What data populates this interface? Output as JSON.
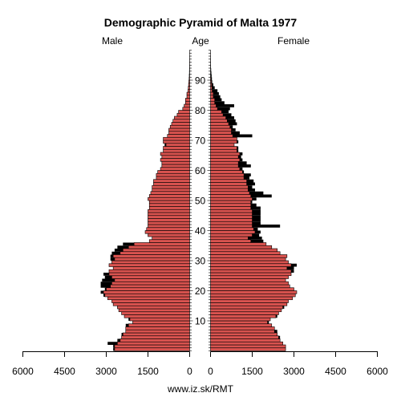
{
  "chart_data": {
    "type": "bar",
    "orientation": "horizontal-pyramid",
    "title": "Demographic Pyramid of Malta 1977",
    "left_label": "Male",
    "center_label": "Age",
    "right_label": "Female",
    "source": "www.iz.sk/RMT",
    "age_ticks": [
      10,
      20,
      30,
      40,
      50,
      60,
      70,
      80,
      90
    ],
    "x_ticks": [
      "6000",
      "4500",
      "3000",
      "1500",
      "0",
      "0",
      "1500",
      "3000",
      "4500",
      "6000"
    ],
    "xlim": [
      0,
      6000
    ],
    "ages": [
      0,
      1,
      2,
      3,
      4,
      5,
      6,
      7,
      8,
      9,
      10,
      11,
      12,
      13,
      14,
      15,
      16,
      17,
      18,
      19,
      20,
      21,
      22,
      23,
      24,
      25,
      26,
      27,
      28,
      29,
      30,
      31,
      32,
      33,
      34,
      35,
      36,
      37,
      38,
      39,
      40,
      41,
      42,
      43,
      44,
      45,
      46,
      47,
      48,
      49,
      50,
      51,
      52,
      53,
      54,
      55,
      56,
      57,
      58,
      59,
      60,
      61,
      62,
      63,
      64,
      65,
      66,
      67,
      68,
      69,
      70,
      71,
      72,
      73,
      74,
      75,
      76,
      77,
      78,
      79,
      80,
      81,
      82,
      83,
      84,
      85,
      86,
      87,
      88,
      89,
      90,
      91,
      92,
      93,
      94,
      95,
      96,
      97,
      98,
      99,
      100
    ],
    "series": [
      {
        "name": "Male",
        "colors": {
          "fill": "#d9534f",
          "excess": "#000000"
        },
        "values": [
          2750,
          2750,
          2950,
          2600,
          2450,
          2450,
          2300,
          2300,
          2300,
          2050,
          2200,
          2350,
          2450,
          2550,
          2600,
          2750,
          2800,
          2950,
          3100,
          3200,
          3050,
          3200,
          3200,
          3150,
          3050,
          3100,
          2900,
          2750,
          2900,
          2800,
          2850,
          2850,
          2800,
          2700,
          2600,
          2400,
          1450,
          1350,
          1500,
          1600,
          1550,
          1500,
          1500,
          1500,
          1500,
          1500,
          1500,
          1450,
          1450,
          1450,
          1500,
          1450,
          1400,
          1350,
          1350,
          1300,
          1300,
          1200,
          1200,
          1150,
          1050,
          1000,
          1000,
          1050,
          1000,
          1050,
          950,
          950,
          900,
          950,
          950,
          800,
          750,
          750,
          700,
          650,
          600,
          550,
          450,
          400,
          250,
          200,
          150,
          150,
          100,
          100,
          60,
          50,
          40,
          30,
          20,
          15,
          10,
          8,
          5,
          4,
          3,
          2,
          1,
          1,
          0
        ]
      },
      {
        "name": "Female",
        "colors": {
          "fill": "#d9534f",
          "excess": "#000000"
        },
        "values": [
          2700,
          2700,
          2600,
          2500,
          2500,
          2400,
          2400,
          2300,
          2200,
          2100,
          2150,
          2400,
          2450,
          2550,
          2650,
          2750,
          2800,
          2950,
          3050,
          3100,
          3000,
          2850,
          2800,
          2700,
          2800,
          2900,
          3000,
          3000,
          3100,
          2800,
          2700,
          2750,
          2500,
          2400,
          2200,
          2000,
          1900,
          1850,
          1750,
          1800,
          1700,
          2500,
          1800,
          1800,
          1800,
          1800,
          1800,
          1800,
          1650,
          1500,
          1650,
          2200,
          1900,
          1600,
          1500,
          1600,
          1550,
          1400,
          1450,
          1200,
          1150,
          1450,
          1300,
          1150,
          1100,
          1150,
          1000,
          1000,
          850,
          1000,
          950,
          1500,
          1050,
          900,
          800,
          950,
          900,
          850,
          750,
          650,
          700,
          850,
          500,
          400,
          350,
          300,
          250,
          150,
          100,
          60,
          50,
          40,
          30,
          20,
          15,
          10,
          5,
          3,
          2,
          1,
          0
        ]
      },
      {
        "name": "Male (excess)",
        "values": [
          0,
          0,
          250,
          0,
          0,
          0,
          0,
          0,
          0,
          0,
          0,
          0,
          0,
          0,
          0,
          0,
          0,
          0,
          0,
          0,
          0,
          0,
          0,
          0,
          0,
          0,
          0,
          0,
          0,
          0,
          0,
          0,
          0,
          0,
          0,
          0,
          0,
          0,
          0,
          0,
          0,
          0,
          0,
          0,
          0,
          0,
          0,
          0,
          0,
          0,
          0,
          0,
          0,
          0,
          0,
          0,
          0,
          0,
          0,
          0,
          0,
          0,
          0,
          0,
          0,
          0,
          0,
          0,
          0,
          0,
          0,
          0,
          0,
          0,
          0,
          0,
          0,
          0,
          0,
          0,
          0,
          0,
          0,
          0,
          0,
          0,
          0,
          0,
          0,
          0,
          0,
          0,
          0,
          0,
          0,
          0,
          0,
          0,
          0,
          0,
          0
        ]
      }
    ]
  }
}
